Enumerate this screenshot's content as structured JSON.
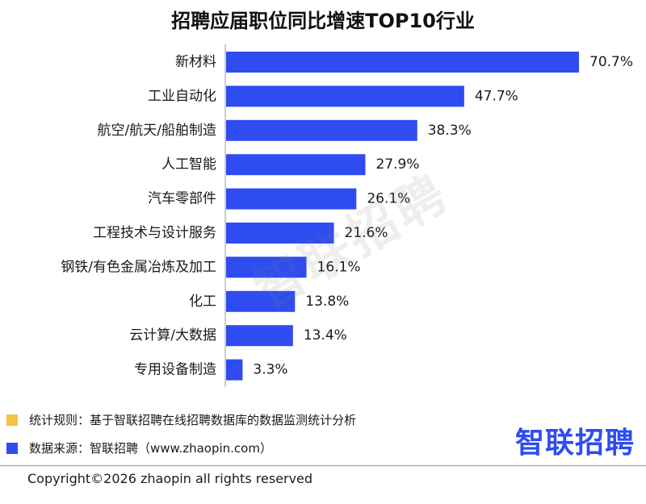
{
  "chart_data": {
    "type": "bar",
    "orientation": "horizontal",
    "title": "招聘应届职位同比增速TOP10行业",
    "categories": [
      "新材料",
      "工业自动化",
      "航空/航天/船舶制造",
      "人工智能",
      "汽车零部件",
      "工程技术与设计服务",
      "钢铁/有色金属冶炼及加工",
      "化工",
      "云计算/大数据",
      "专用设备制造"
    ],
    "values": [
      70.7,
      47.7,
      38.3,
      27.9,
      26.1,
      21.6,
      16.1,
      13.8,
      13.4,
      3.3
    ],
    "value_labels": [
      "70.7%",
      "47.7%",
      "38.3%",
      "27.9%",
      "26.1%",
      "21.6%",
      "16.1%",
      "13.8%",
      "13.4%",
      "3.3%"
    ],
    "xlim": [
      0,
      70.7
    ],
    "grid": false,
    "bar_color": "#2e4cf0"
  },
  "watermark": "智联招聘",
  "notes": [
    {
      "text": "统计规则：基于智联招聘在线招聘数据库的数据监测统计分析",
      "color": "#f5c242"
    },
    {
      "text": "数据来源：智联招聘（www.zhaopin.com）",
      "color": "#2e4cf0"
    }
  ],
  "brand": "智联招聘",
  "copyright": "Copyright©2026 zhaopin all rights reserved"
}
